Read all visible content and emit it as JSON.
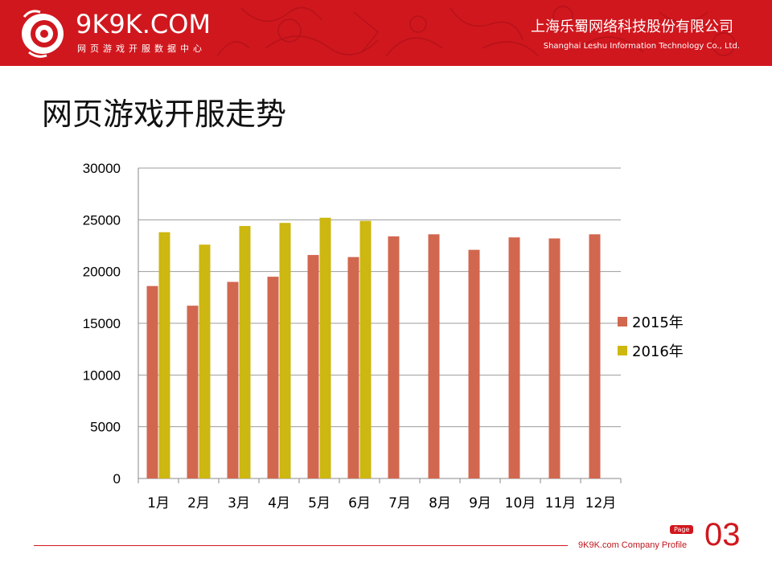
{
  "header": {
    "logo_text": "9K9K.COM",
    "logo_subtitle": "网页游戏开服数据中心",
    "company_cn": "上海乐蜀网络科技股份有限公司",
    "company_en": "Shanghai Leshu Information Technology Co., Ltd."
  },
  "page": {
    "title": "网页游戏开服走势"
  },
  "footer": {
    "company_profile": "9K9K.com Company Profile",
    "page_label": "Page",
    "page_number": "03"
  },
  "colors": {
    "brand_red": "#d0171e",
    "series_2015": "#d2674f",
    "series_2016": "#cdb711"
  },
  "chart_data": {
    "type": "bar",
    "categories": [
      "1月",
      "2月",
      "3月",
      "4月",
      "5月",
      "6月",
      "7月",
      "8月",
      "9月",
      "10月",
      "11月",
      "12月"
    ],
    "series": [
      {
        "name": "2015年",
        "color": "#d2674f",
        "values": [
          18600,
          16700,
          19000,
          19500,
          21600,
          21400,
          23400,
          23600,
          22100,
          23300,
          23200,
          23600
        ]
      },
      {
        "name": "2016年",
        "color": "#cdb711",
        "values": [
          23800,
          22600,
          24400,
          24700,
          25200,
          24900,
          null,
          null,
          null,
          null,
          null,
          null
        ]
      }
    ],
    "ylim": [
      0,
      30000
    ],
    "yticks": [
      "0",
      "5000",
      "10000",
      "15000",
      "20000",
      "25000",
      "30000"
    ],
    "grid": true,
    "legend_position": "right"
  }
}
